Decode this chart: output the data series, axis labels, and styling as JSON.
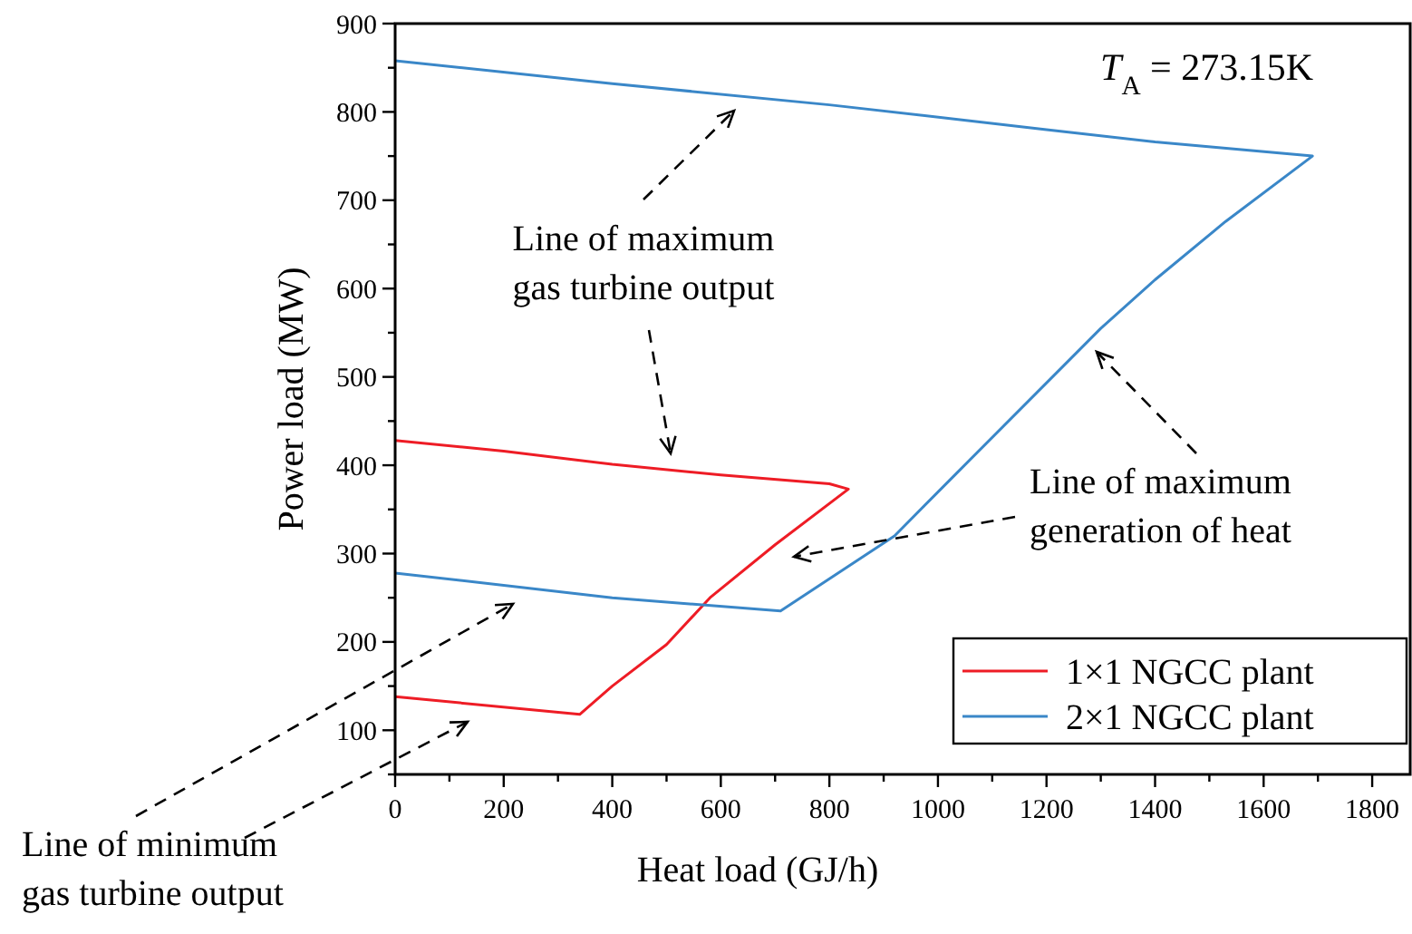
{
  "chart_data": {
    "type": "line",
    "xlabel": "Heat load (GJ/h)",
    "ylabel": "Power load (MW)",
    "xlim": [
      0,
      1870
    ],
    "ylim": [
      50,
      900
    ],
    "xticks": [
      0,
      {
        "value": 100,
        "label": null
      },
      200,
      {
        "value": 300,
        "label": null
      },
      400,
      {
        "value": 500,
        "label": null
      },
      600,
      {
        "value": 700,
        "label": null
      },
      800,
      {
        "value": 900,
        "label": null
      },
      1000,
      {
        "value": 1100,
        "label": null
      },
      1200,
      {
        "value": 1300,
        "label": null
      },
      1400,
      {
        "value": 1500,
        "label": null
      },
      1600,
      {
        "value": 1700,
        "label": null
      },
      1800
    ],
    "yticks": [
      {
        "value": 50,
        "label": null
      },
      100,
      {
        "value": 150,
        "label": null
      },
      200,
      {
        "value": 250,
        "label": null
      },
      300,
      {
        "value": 350,
        "label": null
      },
      400,
      {
        "value": 450,
        "label": null
      },
      500,
      {
        "value": 550,
        "label": null
      },
      600,
      {
        "value": 650,
        "label": null
      },
      700,
      {
        "value": 750,
        "label": null
      },
      800,
      {
        "value": 850,
        "label": null
      },
      900
    ],
    "series": [
      {
        "name": "1×1 NGCC plant",
        "color": "#ee1c25",
        "x": [
          0,
          200,
          400,
          600,
          800,
          835,
          700,
          580,
          500,
          400,
          340,
          0
        ],
        "values": [
          428,
          416,
          401,
          389,
          379,
          373,
          310,
          250,
          197,
          150,
          118,
          138
        ]
      },
      {
        "name": "2×1 NGCC plant",
        "color": "#3a87c8",
        "x": [
          0,
          400,
          800,
          1200,
          1400,
          1690,
          1530,
          1400,
          1300,
          1036,
          920,
          710,
          400,
          0
        ],
        "values": [
          858,
          832,
          808,
          780,
          766,
          750,
          676,
          610,
          555,
          392,
          320,
          235,
          250,
          278
        ]
      }
    ],
    "legend": "bottom right",
    "marker": "none",
    "line_style": "solid",
    "grid": false,
    "annotations": [
      "T$_{A}$ = 273.15K",
      "Line of maximum\ngas turbine output",
      "Line of maximum\ngeneration of heat",
      "Line of minimum\ngas turbine output"
    ]
  }
}
